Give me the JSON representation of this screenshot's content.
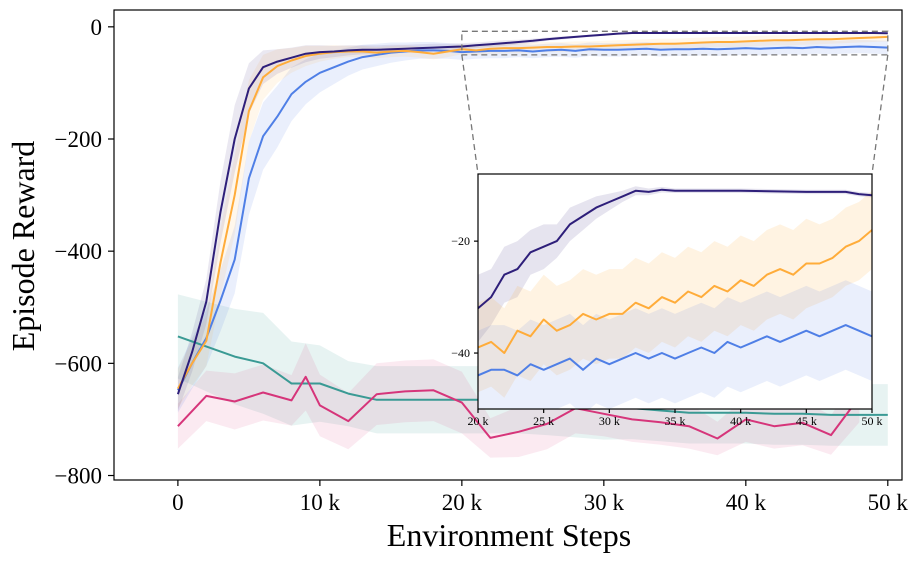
{
  "chart_data": [
    {
      "id": "main",
      "type": "line",
      "title": "",
      "xlabel": "Environment Steps",
      "ylabel": "Episode Reward",
      "xlim": [
        -4500,
        51000
      ],
      "ylim": [
        -808,
        30
      ],
      "x_ticks": [
        0,
        10000,
        20000,
        30000,
        40000,
        50000
      ],
      "x_tick_labels": [
        "0",
        "10 k",
        "20 k",
        "30 k",
        "40 k",
        "50 k"
      ],
      "y_ticks": [
        0,
        -200,
        -400,
        -600,
        -800
      ],
      "y_tick_labels": [
        "0",
        "−200",
        "−400",
        "−600",
        "−800"
      ],
      "zoom_box": {
        "x": [
          20000,
          50000
        ],
        "y": [
          -50,
          -8
        ]
      },
      "series": [
        {
          "name": "series-teal",
          "color": "#3a9a94",
          "band_opacity": 0.12,
          "x": [
            0,
            4000,
            6000,
            8000,
            10000,
            12000,
            14000,
            16000,
            18000,
            20000,
            22000,
            24000,
            26000,
            28000,
            30000,
            32000,
            34000,
            36000,
            38000,
            40000,
            42000,
            44000,
            46000,
            48000,
            50000
          ],
          "y": [
            -552,
            -588,
            -600,
            -636,
            -636,
            -654,
            -665,
            -665,
            -665,
            -665,
            -665,
            -665,
            -668,
            -672,
            -676,
            -680,
            -684,
            -688,
            -688,
            -688,
            -690,
            -690,
            -692,
            -692,
            -692
          ],
          "spread": [
            75,
            85,
            90,
            75,
            68,
            58,
            60,
            60,
            60,
            60,
            60,
            60,
            60,
            60,
            60,
            55,
            55,
            55,
            55,
            55,
            55,
            55,
            55,
            55,
            55
          ]
        },
        {
          "name": "series-magenta",
          "color": "#d6357a",
          "band_opacity": 0.1,
          "x": [
            0,
            2000,
            4000,
            6000,
            8000,
            9000,
            10000,
            12000,
            14000,
            16000,
            18000,
            20000,
            22000,
            24000,
            26000,
            28000,
            30000,
            32000,
            34000,
            36000,
            38000,
            40000,
            42000,
            44000,
            46000,
            48000
          ],
          "y": [
            -712,
            -658,
            -668,
            -652,
            -666,
            -624,
            -675,
            -703,
            -655,
            -650,
            -648,
            -670,
            -733,
            -722,
            -708,
            -680,
            -690,
            -700,
            -705,
            -712,
            -734,
            -700,
            -712,
            -706,
            -728,
            -660
          ],
          "spread": [
            40,
            45,
            50,
            50,
            45,
            60,
            55,
            50,
            55,
            55,
            55,
            55,
            35,
            45,
            45,
            45,
            40,
            40,
            40,
            40,
            30,
            40,
            40,
            40,
            35,
            45
          ]
        },
        {
          "name": "series-blue",
          "color": "#4f7fe6",
          "band_opacity": 0.12,
          "x": [
            0,
            1000,
            2000,
            3000,
            4000,
            5000,
            6000,
            7000,
            8000,
            9000,
            10000,
            11000,
            12000,
            13000,
            14000,
            15000,
            16000,
            17000,
            18000,
            19000,
            20000,
            21000,
            22000,
            23000,
            24000,
            25000,
            26000,
            27000,
            28000,
            29000,
            30000,
            31000,
            32000,
            33000,
            34000,
            35000,
            36000,
            37000,
            38000,
            39000,
            40000,
            41000,
            42000,
            43000,
            44000,
            45000,
            46000,
            47000,
            48000,
            49000,
            50000
          ],
          "y": [
            -648,
            -600,
            -555,
            -488,
            -415,
            -270,
            -195,
            -160,
            -120,
            -98,
            -82,
            -72,
            -62,
            -54,
            -50,
            -46,
            -44,
            -42,
            -42,
            -43,
            -45,
            -44,
            -43,
            -43,
            -42,
            -44,
            -42,
            -41,
            -43,
            -40,
            -41,
            -41,
            -40,
            -39,
            -41,
            -40,
            -40,
            -39,
            -40,
            -39,
            -38,
            -39,
            -38,
            -37,
            -38,
            -36,
            -37,
            -36,
            -35,
            -36,
            -37
          ],
          "spread": [
            40,
            45,
            50,
            55,
            60,
            65,
            60,
            55,
            48,
            40,
            35,
            30,
            25,
            22,
            20,
            18,
            16,
            15,
            15,
            14,
            14,
            13,
            13,
            13,
            12,
            12,
            12,
            12,
            12,
            12,
            12,
            12,
            12,
            12,
            12,
            12,
            12,
            12,
            12,
            12,
            12,
            12,
            12,
            12,
            12,
            12,
            12,
            12,
            12,
            12,
            12
          ]
        },
        {
          "name": "series-orange",
          "color": "#ffac3a",
          "band_opacity": 0.1,
          "x": [
            0,
            1000,
            2000,
            3000,
            4000,
            5000,
            6000,
            7000,
            8000,
            9000,
            10000,
            11000,
            12000,
            13000,
            14000,
            15000,
            16000,
            17000,
            18000,
            19000,
            20000,
            21000,
            22000,
            23000,
            24000,
            25000,
            26000,
            27000,
            28000,
            29000,
            30000,
            31000,
            32000,
            33000,
            34000,
            35000,
            36000,
            37000,
            38000,
            39000,
            40000,
            41000,
            42000,
            43000,
            44000,
            45000,
            46000,
            47000,
            48000,
            49000,
            50000
          ],
          "y": [
            -645,
            -600,
            -560,
            -420,
            -300,
            -150,
            -90,
            -70,
            -60,
            -52,
            -48,
            -45,
            -44,
            -44,
            -46,
            -44,
            -43,
            -45,
            -48,
            -44,
            -40,
            -42,
            -39,
            -38,
            -38,
            -37,
            -36,
            -36,
            -35,
            -35,
            -34,
            -33,
            -32,
            -31,
            -30,
            -30,
            -29,
            -28,
            -27,
            -27,
            -26,
            -25,
            -24,
            -24,
            -23,
            -22,
            -22,
            -21,
            -20,
            -19,
            -18
          ],
          "spread": [
            35,
            40,
            45,
            60,
            70,
            55,
            40,
            30,
            22,
            18,
            14,
            12,
            10,
            10,
            10,
            10,
            10,
            10,
            10,
            10,
            9,
            9,
            9,
            9,
            9,
            9,
            9,
            9,
            9,
            9,
            9,
            9,
            9,
            9,
            9,
            9,
            9,
            9,
            9,
            9,
            9,
            9,
            9,
            9,
            9,
            9,
            8,
            8,
            8,
            8,
            8
          ]
        },
        {
          "name": "series-navy",
          "color": "#2e1f7a",
          "band_opacity": 0.1,
          "x": [
            0,
            1000,
            2000,
            3000,
            4000,
            5000,
            6000,
            7000,
            8000,
            9000,
            10000,
            11000,
            12000,
            13000,
            14000,
            15000,
            16000,
            17000,
            18000,
            19000,
            20000,
            21000,
            22000,
            23000,
            24000,
            25000,
            26000,
            27000,
            28000,
            29000,
            30000,
            31000,
            32000,
            33000,
            34000,
            35000,
            36000,
            37000,
            38000,
            39000,
            40000,
            41000,
            42000,
            43000,
            44000,
            45000,
            46000,
            47000,
            48000,
            49000,
            50000
          ],
          "y": [
            -655,
            -580,
            -490,
            -330,
            -200,
            -110,
            -72,
            -62,
            -55,
            -48,
            -45,
            -44,
            -42,
            -41,
            -41,
            -40,
            -39,
            -38,
            -37,
            -36,
            -35,
            -33,
            -31,
            -29,
            -27,
            -25,
            -22,
            -20,
            -18,
            -16,
            -14,
            -12,
            -11,
            -11,
            -11,
            -11,
            -11,
            -11,
            -11,
            -11,
            -11,
            -11,
            -11,
            -11,
            -11,
            -11,
            -11,
            -11,
            -11,
            -11,
            -11.5
          ],
          "spread": [
            30,
            35,
            40,
            55,
            60,
            45,
            30,
            22,
            18,
            15,
            12,
            10,
            9,
            8,
            8,
            8,
            7,
            7,
            7,
            6,
            6,
            5,
            5,
            5,
            4,
            4,
            3,
            3,
            2,
            2,
            2,
            1,
            1,
            1,
            1,
            1,
            1,
            1,
            1,
            1,
            1,
            1,
            1,
            1,
            1,
            1,
            1,
            1,
            1,
            1,
            1
          ]
        }
      ]
    },
    {
      "id": "inset",
      "type": "line",
      "title": "",
      "xlabel": "",
      "ylabel": "",
      "xlim": [
        20000,
        50000
      ],
      "ylim": [
        -50,
        -8
      ],
      "x_ticks": [
        20000,
        25000,
        30000,
        35000,
        40000,
        45000,
        50000
      ],
      "x_tick_labels": [
        "20 k",
        "25 k",
        "30 k",
        "35 k",
        "40 k",
        "45 k",
        "50 k"
      ],
      "y_ticks": [
        -20,
        -40
      ],
      "y_tick_labels": [
        "−20",
        "−40"
      ],
      "series": [
        {
          "name": "series-navy",
          "color": "#2e1f7a",
          "band_opacity": 0.12,
          "x": [
            20000,
            21000,
            22000,
            23000,
            24000,
            25000,
            26000,
            27000,
            28000,
            29000,
            30000,
            31000,
            32000,
            33000,
            34000,
            35000,
            37000,
            40000,
            45000,
            48000,
            49000,
            50000
          ],
          "y": [
            -32,
            -30,
            -26,
            -25,
            -22,
            -21,
            -20,
            -17,
            -15.5,
            -14,
            -13,
            -12,
            -11,
            -11.2,
            -10.8,
            -11,
            -11,
            -11,
            -11.2,
            -11.2,
            -11.6,
            -11.8
          ],
          "spread": [
            6,
            5,
            5,
            5,
            4,
            4,
            3,
            3,
            2.5,
            2,
            1.5,
            1,
            0.8,
            0.6,
            0.5,
            0.4,
            0.4,
            0.4,
            0.4,
            0.4,
            0.4,
            0.4
          ]
        },
        {
          "name": "series-orange",
          "color": "#ffac3a",
          "band_opacity": 0.15,
          "x": [
            20000,
            21000,
            22000,
            23000,
            24000,
            25000,
            26000,
            27000,
            28000,
            29000,
            30000,
            31000,
            32000,
            33000,
            34000,
            35000,
            36000,
            37000,
            38000,
            39000,
            40000,
            41000,
            42000,
            43000,
            44000,
            45000,
            46000,
            47000,
            48000,
            49000,
            50000
          ],
          "y": [
            -39,
            -38,
            -40,
            -36,
            -37,
            -34,
            -36,
            -35,
            -33,
            -34,
            -33,
            -33,
            -31,
            -32,
            -30,
            -31,
            -29,
            -30,
            -28,
            -29,
            -27,
            -28,
            -26,
            -25,
            -26,
            -24,
            -24,
            -23,
            -21,
            -20,
            -18
          ],
          "spread": [
            8,
            8,
            8,
            8,
            8,
            8,
            8,
            8,
            8,
            8,
            8,
            8,
            8,
            8,
            8,
            8,
            8,
            8,
            8,
            8,
            8,
            8,
            8,
            8,
            8,
            8,
            7,
            7,
            7,
            7,
            7
          ]
        },
        {
          "name": "series-blue",
          "color": "#4f7fe6",
          "band_opacity": 0.12,
          "x": [
            20000,
            21000,
            22000,
            23000,
            24000,
            25000,
            26000,
            27000,
            28000,
            29000,
            30000,
            31000,
            32000,
            33000,
            34000,
            35000,
            36000,
            37000,
            38000,
            39000,
            40000,
            41000,
            42000,
            43000,
            44000,
            45000,
            46000,
            47000,
            48000,
            49000,
            50000
          ],
          "y": [
            -44,
            -43,
            -43,
            -44,
            -42,
            -43,
            -42,
            -41,
            -43,
            -41,
            -42,
            -41,
            -40,
            -41,
            -40,
            -41,
            -40,
            -39,
            -40,
            -38,
            -39,
            -38,
            -37,
            -38,
            -37,
            -36,
            -37,
            -36,
            -35,
            -36,
            -37
          ],
          "spread": [
            8,
            8,
            8,
            8,
            8,
            8,
            8,
            8,
            8,
            8,
            8,
            8,
            8,
            8,
            8,
            8,
            8,
            8,
            8,
            8,
            8,
            8,
            8,
            8,
            8,
            8,
            8,
            8,
            8,
            8,
            8
          ]
        }
      ]
    }
  ]
}
